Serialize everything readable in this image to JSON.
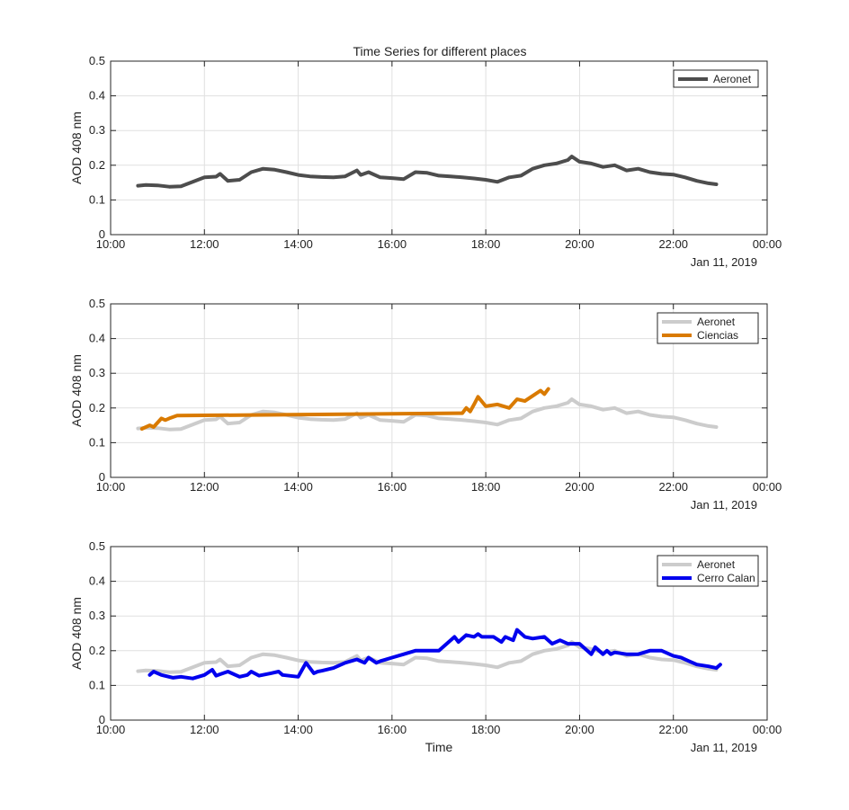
{
  "figure": {
    "title": "Time Series for different places"
  },
  "colors": {
    "aeronet_dark": "#4d4d4d",
    "aeronet_light": "#cccccc",
    "ciencias": "#d97a00",
    "cerro_calan": "#0000ee",
    "grid": "#e0e0e0",
    "axis": "#262626"
  },
  "chart_data": [
    {
      "type": "line",
      "title": "Time Series for different places",
      "xlabel": "",
      "ylabel": "AOD 408 nm",
      "xlim": [
        "10:00",
        "00:00"
      ],
      "x_ticks": [
        "10:00",
        "12:00",
        "14:00",
        "16:00",
        "18:00",
        "20:00",
        "22:00",
        "00:00"
      ],
      "date_label": "Jan 11, 2019",
      "ylim": [
        0,
        0.5
      ],
      "y_ticks": [
        "0",
        "0.1",
        "0.2",
        "0.3",
        "0.4",
        "0.5"
      ],
      "grid": true,
      "legend": "top-right",
      "series": [
        {
          "name": "Aeronet",
          "color": "#4d4d4d",
          "x": [
            "10:35",
            "10:45",
            "11:00",
            "11:15",
            "11:30",
            "11:45",
            "12:00",
            "12:15",
            "12:20",
            "12:30",
            "12:45",
            "13:00",
            "13:15",
            "13:30",
            "13:45",
            "14:00",
            "14:15",
            "14:30",
            "14:45",
            "15:00",
            "15:15",
            "15:20",
            "15:30",
            "15:45",
            "16:00",
            "16:15",
            "16:30",
            "16:45",
            "17:00",
            "17:15",
            "17:30",
            "17:45",
            "18:00",
            "18:15",
            "18:30",
            "18:45",
            "19:00",
            "19:15",
            "19:30",
            "19:45",
            "19:50",
            "20:00",
            "20:15",
            "20:30",
            "20:45",
            "21:00",
            "21:15",
            "21:30",
            "21:45",
            "22:00",
            "22:15",
            "22:30",
            "22:45",
            "22:55"
          ],
          "y": [
            0.141,
            0.143,
            0.142,
            0.138,
            0.139,
            0.152,
            0.165,
            0.167,
            0.175,
            0.155,
            0.158,
            0.18,
            0.19,
            0.187,
            0.18,
            0.172,
            0.168,
            0.166,
            0.165,
            0.168,
            0.185,
            0.172,
            0.18,
            0.165,
            0.163,
            0.16,
            0.18,
            0.178,
            0.17,
            0.168,
            0.165,
            0.162,
            0.158,
            0.152,
            0.165,
            0.17,
            0.19,
            0.2,
            0.205,
            0.215,
            0.225,
            0.21,
            0.205,
            0.195,
            0.2,
            0.185,
            0.19,
            0.18,
            0.175,
            0.173,
            0.165,
            0.155,
            0.148,
            0.145
          ]
        }
      ]
    },
    {
      "type": "line",
      "xlabel": "",
      "ylabel": "AOD 408 nm",
      "xlim": [
        "10:00",
        "00:00"
      ],
      "x_ticks": [
        "10:00",
        "12:00",
        "14:00",
        "16:00",
        "18:00",
        "20:00",
        "22:00",
        "00:00"
      ],
      "date_label": "Jan 11, 2019",
      "ylim": [
        0,
        0.5
      ],
      "y_ticks": [
        "0",
        "0.1",
        "0.2",
        "0.3",
        "0.4",
        "0.5"
      ],
      "grid": true,
      "legend": "top-right",
      "series": [
        {
          "name": "Aeronet",
          "color": "#cccccc",
          "x": [
            "10:35",
            "10:45",
            "11:00",
            "11:15",
            "11:30",
            "11:45",
            "12:00",
            "12:15",
            "12:20",
            "12:30",
            "12:45",
            "13:00",
            "13:15",
            "13:30",
            "13:45",
            "14:00",
            "14:15",
            "14:30",
            "14:45",
            "15:00",
            "15:15",
            "15:20",
            "15:30",
            "15:45",
            "16:00",
            "16:15",
            "16:30",
            "16:45",
            "17:00",
            "17:15",
            "17:30",
            "17:45",
            "18:00",
            "18:15",
            "18:30",
            "18:45",
            "19:00",
            "19:15",
            "19:30",
            "19:45",
            "19:50",
            "20:00",
            "20:15",
            "20:30",
            "20:45",
            "21:00",
            "21:15",
            "21:30",
            "21:45",
            "22:00",
            "22:15",
            "22:30",
            "22:45",
            "22:55"
          ],
          "y": [
            0.141,
            0.143,
            0.142,
            0.138,
            0.139,
            0.152,
            0.165,
            0.167,
            0.175,
            0.155,
            0.158,
            0.18,
            0.19,
            0.187,
            0.18,
            0.172,
            0.168,
            0.166,
            0.165,
            0.168,
            0.185,
            0.172,
            0.18,
            0.165,
            0.163,
            0.16,
            0.18,
            0.178,
            0.17,
            0.168,
            0.165,
            0.162,
            0.158,
            0.152,
            0.165,
            0.17,
            0.19,
            0.2,
            0.205,
            0.215,
            0.225,
            0.21,
            0.205,
            0.195,
            0.2,
            0.185,
            0.19,
            0.18,
            0.175,
            0.173,
            0.165,
            0.155,
            0.148,
            0.145
          ]
        },
        {
          "name": "Ciencias",
          "color": "#d97a00",
          "x": [
            "10:40",
            "10:50",
            "10:55",
            "11:05",
            "11:10",
            "11:15",
            "11:25",
            "17:30",
            "17:35",
            "17:40",
            "17:45",
            "17:50",
            "18:00",
            "18:15",
            "18:30",
            "18:40",
            "18:50",
            "19:00",
            "19:10",
            "19:15",
            "19:20"
          ],
          "y": [
            0.14,
            0.15,
            0.145,
            0.17,
            0.165,
            0.17,
            0.178,
            0.185,
            0.2,
            0.19,
            0.21,
            0.232,
            0.205,
            0.21,
            0.2,
            0.225,
            0.22,
            0.235,
            0.25,
            0.24,
            0.255
          ]
        }
      ]
    },
    {
      "type": "line",
      "xlabel": "Time",
      "ylabel": "AOD 408 nm",
      "xlim": [
        "10:00",
        "00:00"
      ],
      "x_ticks": [
        "10:00",
        "12:00",
        "14:00",
        "16:00",
        "18:00",
        "20:00",
        "22:00",
        "00:00"
      ],
      "date_label": "Jan 11, 2019",
      "ylim": [
        0,
        0.5
      ],
      "y_ticks": [
        "0",
        "0.1",
        "0.2",
        "0.3",
        "0.4",
        "0.5"
      ],
      "grid": true,
      "legend": "top-right",
      "series": [
        {
          "name": "Aeronet",
          "color": "#cccccc",
          "x": [
            "10:35",
            "10:45",
            "11:00",
            "11:15",
            "11:30",
            "11:45",
            "12:00",
            "12:15",
            "12:20",
            "12:30",
            "12:45",
            "13:00",
            "13:15",
            "13:30",
            "13:45",
            "14:00",
            "14:15",
            "14:30",
            "14:45",
            "15:00",
            "15:15",
            "15:20",
            "15:30",
            "15:45",
            "16:00",
            "16:15",
            "16:30",
            "16:45",
            "17:00",
            "17:15",
            "17:30",
            "17:45",
            "18:00",
            "18:15",
            "18:30",
            "18:45",
            "19:00",
            "19:15",
            "19:30",
            "19:45",
            "19:50",
            "20:00",
            "20:15",
            "20:30",
            "20:45",
            "21:00",
            "21:15",
            "21:30",
            "21:45",
            "22:00",
            "22:15",
            "22:30",
            "22:45",
            "22:55"
          ],
          "y": [
            0.141,
            0.143,
            0.142,
            0.138,
            0.139,
            0.152,
            0.165,
            0.167,
            0.175,
            0.155,
            0.158,
            0.18,
            0.19,
            0.187,
            0.18,
            0.172,
            0.168,
            0.166,
            0.165,
            0.168,
            0.185,
            0.172,
            0.18,
            0.165,
            0.163,
            0.16,
            0.18,
            0.178,
            0.17,
            0.168,
            0.165,
            0.162,
            0.158,
            0.152,
            0.165,
            0.17,
            0.19,
            0.2,
            0.205,
            0.215,
            0.225,
            0.21,
            0.205,
            0.195,
            0.2,
            0.185,
            0.19,
            0.18,
            0.175,
            0.173,
            0.165,
            0.155,
            0.148,
            0.145
          ]
        },
        {
          "name": "Cerro Calan",
          "color": "#0000ee",
          "x": [
            "10:50",
            "10:55",
            "11:05",
            "11:20",
            "11:30",
            "11:45",
            "12:00",
            "12:10",
            "12:15",
            "12:20",
            "12:30",
            "12:45",
            "12:55",
            "13:00",
            "13:10",
            "13:25",
            "13:35",
            "13:40",
            "14:00",
            "14:05",
            "14:10",
            "14:20",
            "14:25",
            "14:30",
            "14:45",
            "15:00",
            "15:15",
            "15:25",
            "15:30",
            "15:40",
            "15:45",
            "16:00",
            "16:15",
            "16:30",
            "16:45",
            "17:00",
            "17:20",
            "17:25",
            "17:35",
            "17:45",
            "17:50",
            "17:55",
            "18:10",
            "18:20",
            "18:25",
            "18:35",
            "18:40",
            "18:50",
            "19:00",
            "19:15",
            "19:25",
            "19:35",
            "19:45",
            "20:00",
            "20:15",
            "20:20",
            "20:30",
            "20:35",
            "20:40",
            "20:45",
            "21:00",
            "21:15",
            "21:30",
            "21:45",
            "22:00",
            "22:10",
            "22:20",
            "22:30",
            "22:45",
            "22:55",
            "23:00"
          ],
          "y": [
            0.13,
            0.14,
            0.13,
            0.122,
            0.125,
            0.12,
            0.13,
            0.145,
            0.128,
            0.132,
            0.14,
            0.125,
            0.13,
            0.14,
            0.128,
            0.135,
            0.14,
            0.13,
            0.125,
            0.145,
            0.165,
            0.135,
            0.14,
            0.142,
            0.15,
            0.165,
            0.175,
            0.165,
            0.18,
            0.165,
            0.17,
            0.18,
            0.19,
            0.2,
            0.2,
            0.2,
            0.24,
            0.225,
            0.245,
            0.24,
            0.248,
            0.24,
            0.24,
            0.225,
            0.24,
            0.23,
            0.26,
            0.24,
            0.235,
            0.24,
            0.22,
            0.23,
            0.22,
            0.22,
            0.19,
            0.21,
            0.19,
            0.2,
            0.19,
            0.195,
            0.19,
            0.19,
            0.2,
            0.2,
            0.185,
            0.18,
            0.17,
            0.16,
            0.155,
            0.15,
            0.16
          ]
        }
      ]
    }
  ]
}
